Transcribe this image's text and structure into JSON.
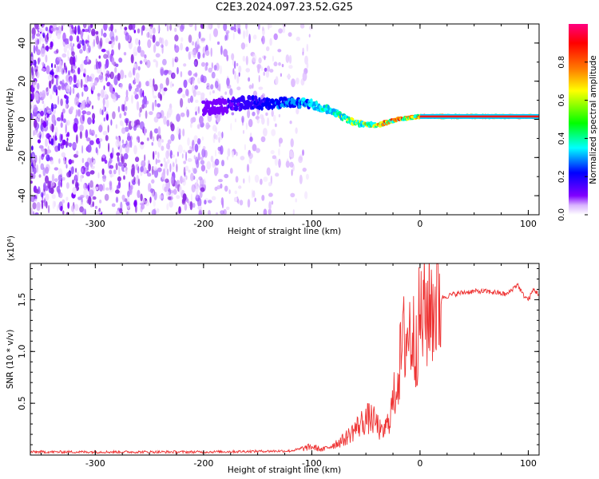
{
  "title": "C2E3.2024.097.23.52.G25",
  "chart_data": [
    {
      "type": "heatmap",
      "xlabel": "Height of straight line (km)",
      "ylabel": "Frequency (Hz)",
      "xlim": [
        -360,
        110
      ],
      "ylim": [
        -50,
        50
      ],
      "xticks": [
        -300,
        -200,
        -100,
        0,
        100
      ],
      "yticks": [
        -40,
        -20,
        0,
        20,
        40
      ],
      "colorbar": {
        "label": "Normalized spectral amplitude",
        "range": [
          0,
          1
        ],
        "ticks": [
          0.0,
          0.2,
          0.4,
          0.6,
          0.8
        ],
        "stops": [
          "#ffffff",
          "#d9b3ff",
          "#8000ff",
          "#0000ff",
          "#00ffff",
          "#00ff00",
          "#ffff00",
          "#ff8000",
          "#ff0000",
          "#ff0080"
        ]
      },
      "signal_track": {
        "x": [
          -200,
          -180,
          -160,
          -140,
          -120,
          -100,
          -80,
          -60,
          -40,
          -20,
          0,
          20,
          40,
          60,
          80,
          110
        ],
        "freq": [
          6,
          7,
          9,
          8,
          9,
          8,
          4,
          -2,
          -3,
          0,
          1.5,
          1.5,
          1.5,
          1.5,
          1.5,
          1.5
        ]
      },
      "noise_region": {
        "x": [
          -360,
          -100
        ],
        "amplitude": "low"
      }
    },
    {
      "type": "line",
      "xlabel": "Height of straight line (km)",
      "ylabel": "SNR (10 * v/v)",
      "yscale_label": "(x10⁴)",
      "xlim": [
        -360,
        110
      ],
      "ylim": [
        0,
        1.85
      ],
      "xticks": [
        -300,
        -200,
        -100,
        0,
        100
      ],
      "yticks": [
        0.5,
        1.0,
        1.5
      ],
      "series": [
        {
          "color": "#ee3333",
          "x": [
            -360,
            -300,
            -200,
            -120,
            -110,
            -100,
            -90,
            -80,
            -70,
            -60,
            -50,
            -45,
            -40,
            -35,
            -30,
            -25,
            -20,
            -15,
            -10,
            -5,
            0,
            10,
            20,
            30,
            40,
            50,
            60,
            70,
            80,
            90,
            95,
            100,
            105,
            110
          ],
          "y": [
            0.03,
            0.03,
            0.03,
            0.04,
            0.06,
            0.08,
            0.05,
            0.1,
            0.15,
            0.25,
            0.35,
            0.35,
            0.3,
            0.2,
            0.3,
            0.5,
            0.8,
            1.1,
            1.2,
            1.1,
            1.3,
            1.45,
            1.52,
            1.55,
            1.57,
            1.58,
            1.58,
            1.57,
            1.55,
            1.65,
            1.55,
            1.5,
            1.6,
            1.55
          ]
        }
      ]
    }
  ]
}
